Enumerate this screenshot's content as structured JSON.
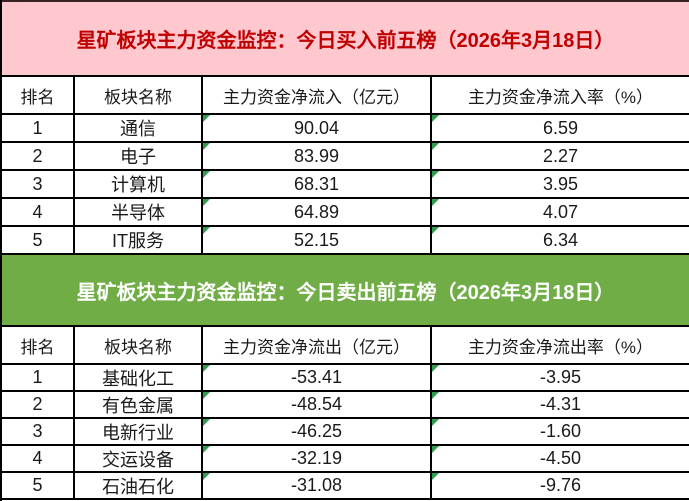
{
  "colors": {
    "buy_banner_bg": "#FFC7CE",
    "buy_banner_text": "#C00000",
    "sell_banner_bg": "#70AD47",
    "sell_banner_text": "#FFFFFF",
    "table_border": "#000000",
    "cell_flag_indicator": "#2F9E4F"
  },
  "icons": {
    "cell_flag": "excel-green-corner-triangle"
  },
  "chart_data": [
    {
      "type": "table",
      "title": "星矿板块主力资金监控：今日买入前五榜（2026年3月18日）",
      "columns": [
        "排名",
        "板块名称",
        "主力资金净流入（亿元）",
        "主力资金净流入率（%）"
      ],
      "rows": [
        [
          "1",
          "通信",
          "90.04",
          "6.59"
        ],
        [
          "2",
          "电子",
          "83.99",
          "2.27"
        ],
        [
          "3",
          "计算机",
          "68.31",
          "3.95"
        ],
        [
          "4",
          "半导体",
          "64.89",
          "4.07"
        ],
        [
          "5",
          "IT服务",
          "52.15",
          "6.34"
        ]
      ]
    },
    {
      "type": "table",
      "title": "星矿板块主力资金监控：今日卖出前五榜（2026年3月18日）",
      "columns": [
        "排名",
        "板块名称",
        "主力资金净流出（亿元）",
        "主力资金净流出率（%）"
      ],
      "rows": [
        [
          "1",
          "基础化工",
          "-53.41",
          "-3.95"
        ],
        [
          "2",
          "有色金属",
          "-48.54",
          "-4.31"
        ],
        [
          "3",
          "电新行业",
          "-46.25",
          "-1.60"
        ],
        [
          "4",
          "交运设备",
          "-32.19",
          "-4.50"
        ],
        [
          "5",
          "石油石化",
          "-31.08",
          "-9.76"
        ]
      ]
    }
  ]
}
